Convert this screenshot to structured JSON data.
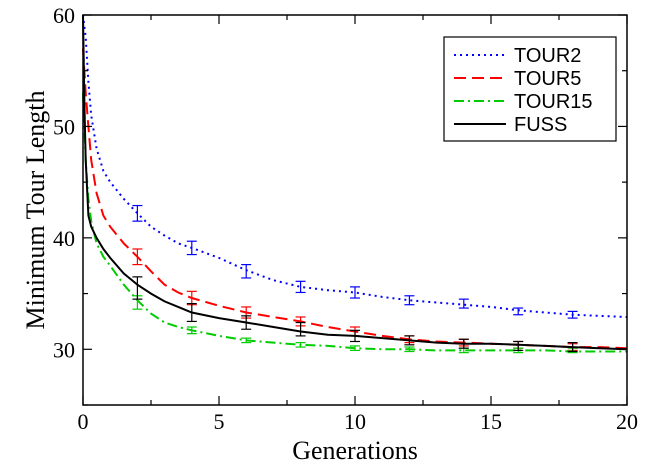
{
  "chart_data": {
    "type": "line",
    "xlabel": "Generations",
    "ylabel": "Minimum Tour Length",
    "xlim": [
      0,
      20
    ],
    "ylim": [
      25,
      60
    ],
    "xticks": [
      0,
      5,
      10,
      15,
      20
    ],
    "xtick_labels": [
      "0",
      "5",
      "10",
      "15",
      "20"
    ],
    "yticks": [
      30,
      40,
      50,
      60
    ],
    "ytick_labels": [
      "30",
      "40",
      "50",
      "60"
    ],
    "grid": false,
    "legend_position": "top-right",
    "series": [
      {
        "name": "TOUR2",
        "color": "#0000ff",
        "dash": "dotted",
        "x": [
          0,
          0.1,
          0.2,
          0.3,
          0.5,
          0.75,
          1,
          1.5,
          2,
          2.5,
          3,
          3.5,
          4,
          5,
          6,
          7,
          8,
          9,
          10,
          11,
          12,
          13,
          14,
          15,
          16,
          17,
          18,
          19,
          20
        ],
        "y": [
          60,
          58,
          54,
          51,
          48,
          46,
          45,
          43.5,
          42.2,
          41,
          40.2,
          39.5,
          39.1,
          38.2,
          37.1,
          36.2,
          35.6,
          35.3,
          35.1,
          34.7,
          34.4,
          34.2,
          34.0,
          33.8,
          33.5,
          33.3,
          33.1,
          33.0,
          32.9
        ],
        "error_bars": [
          {
            "x": 2,
            "y": 42.2,
            "err": 0.7
          },
          {
            "x": 4,
            "y": 39.1,
            "err": 0.6
          },
          {
            "x": 6,
            "y": 37.0,
            "err": 0.6
          },
          {
            "x": 8,
            "y": 35.6,
            "err": 0.5
          },
          {
            "x": 10,
            "y": 35.1,
            "err": 0.5
          },
          {
            "x": 12,
            "y": 34.4,
            "err": 0.4
          },
          {
            "x": 14,
            "y": 34.1,
            "err": 0.4
          },
          {
            "x": 16,
            "y": 33.4,
            "err": 0.3
          },
          {
            "x": 18,
            "y": 33.1,
            "err": 0.3
          }
        ]
      },
      {
        "name": "TOUR5",
        "color": "#ff0000",
        "dash": "dashed",
        "x": [
          0,
          0.1,
          0.2,
          0.3,
          0.5,
          0.75,
          1,
          1.5,
          2,
          2.5,
          3,
          3.5,
          4,
          5,
          6,
          7,
          8,
          9,
          10,
          11,
          12,
          13,
          14,
          15,
          16,
          17,
          18,
          19,
          20
        ],
        "y": [
          57,
          53,
          50,
          47,
          44,
          42,
          41,
          39.5,
          38.3,
          37,
          35.8,
          35.1,
          34.6,
          33.9,
          33.3,
          32.9,
          32.5,
          32.0,
          31.6,
          31.2,
          30.9,
          30.7,
          30.6,
          30.5,
          30.4,
          30.3,
          30.2,
          30.2,
          30.1
        ],
        "error_bars": [
          {
            "x": 2,
            "y": 38.3,
            "err": 0.7
          },
          {
            "x": 4,
            "y": 34.6,
            "err": 0.6
          },
          {
            "x": 6,
            "y": 33.3,
            "err": 0.5
          },
          {
            "x": 8,
            "y": 32.5,
            "err": 0.4
          },
          {
            "x": 10,
            "y": 31.6,
            "err": 0.4
          },
          {
            "x": 12,
            "y": 30.9,
            "err": 0.3
          },
          {
            "x": 14,
            "y": 30.6,
            "err": 0.3
          },
          {
            "x": 16,
            "y": 30.4,
            "err": 0.3
          },
          {
            "x": 18,
            "y": 30.2,
            "err": 0.3
          }
        ]
      },
      {
        "name": "TOUR15",
        "color": "#00cc00",
        "dash": "dashdot",
        "x": [
          0,
          0.1,
          0.2,
          0.3,
          0.5,
          0.75,
          1,
          1.5,
          2,
          2.5,
          3,
          3.5,
          4,
          5,
          6,
          7,
          8,
          9,
          10,
          11,
          12,
          13,
          14,
          15,
          16,
          17,
          18,
          19,
          20
        ],
        "y": [
          53,
          47,
          43.5,
          41.5,
          39.5,
          38.3,
          37.5,
          35.8,
          34.4,
          33.2,
          32.4,
          32.0,
          31.7,
          31.2,
          30.8,
          30.6,
          30.4,
          30.3,
          30.1,
          30.0,
          30.0,
          29.9,
          29.9,
          29.9,
          29.9,
          29.9,
          29.8,
          29.8,
          29.8
        ],
        "error_bars": [
          {
            "x": 2,
            "y": 34.2,
            "err": 0.6
          },
          {
            "x": 4,
            "y": 31.7,
            "err": 0.3
          },
          {
            "x": 6,
            "y": 30.8,
            "err": 0.2
          },
          {
            "x": 8,
            "y": 30.4,
            "err": 0.2
          },
          {
            "x": 10,
            "y": 30.1,
            "err": 0.2
          },
          {
            "x": 12,
            "y": 30.0,
            "err": 0.2
          },
          {
            "x": 14,
            "y": 29.9,
            "err": 0.2
          },
          {
            "x": 16,
            "y": 29.9,
            "err": 0.2
          },
          {
            "x": 18,
            "y": 29.9,
            "err": 0.2
          }
        ]
      },
      {
        "name": "FUSS",
        "color": "#000000",
        "dash": "solid",
        "x": [
          0,
          0.05,
          0.1,
          0.2,
          0.3,
          0.5,
          0.75,
          1,
          1.5,
          2,
          2.5,
          3,
          3.5,
          4,
          5,
          6,
          7,
          8,
          9,
          10,
          11,
          12,
          13,
          14,
          15,
          16,
          17,
          18,
          19,
          20
        ],
        "y": [
          60,
          52,
          47,
          42,
          41,
          40,
          39,
          38.2,
          36.8,
          35.8,
          35.0,
          34.3,
          33.8,
          33.3,
          32.8,
          32.4,
          32.0,
          31.6,
          31.3,
          31.2,
          31.0,
          30.8,
          30.6,
          30.5,
          30.5,
          30.4,
          30.3,
          30.2,
          30.1,
          30.0
        ],
        "error_bars": [
          {
            "x": 2,
            "y": 35.5,
            "err": 1.0
          },
          {
            "x": 4,
            "y": 33.3,
            "err": 0.8
          },
          {
            "x": 6,
            "y": 32.4,
            "err": 0.6
          },
          {
            "x": 8,
            "y": 31.8,
            "err": 0.6
          },
          {
            "x": 10,
            "y": 31.2,
            "err": 0.5
          },
          {
            "x": 12,
            "y": 30.8,
            "err": 0.4
          },
          {
            "x": 14,
            "y": 30.5,
            "err": 0.4
          },
          {
            "x": 16,
            "y": 30.3,
            "err": 0.4
          },
          {
            "x": 18,
            "y": 30.2,
            "err": 0.4
          }
        ]
      }
    ]
  }
}
